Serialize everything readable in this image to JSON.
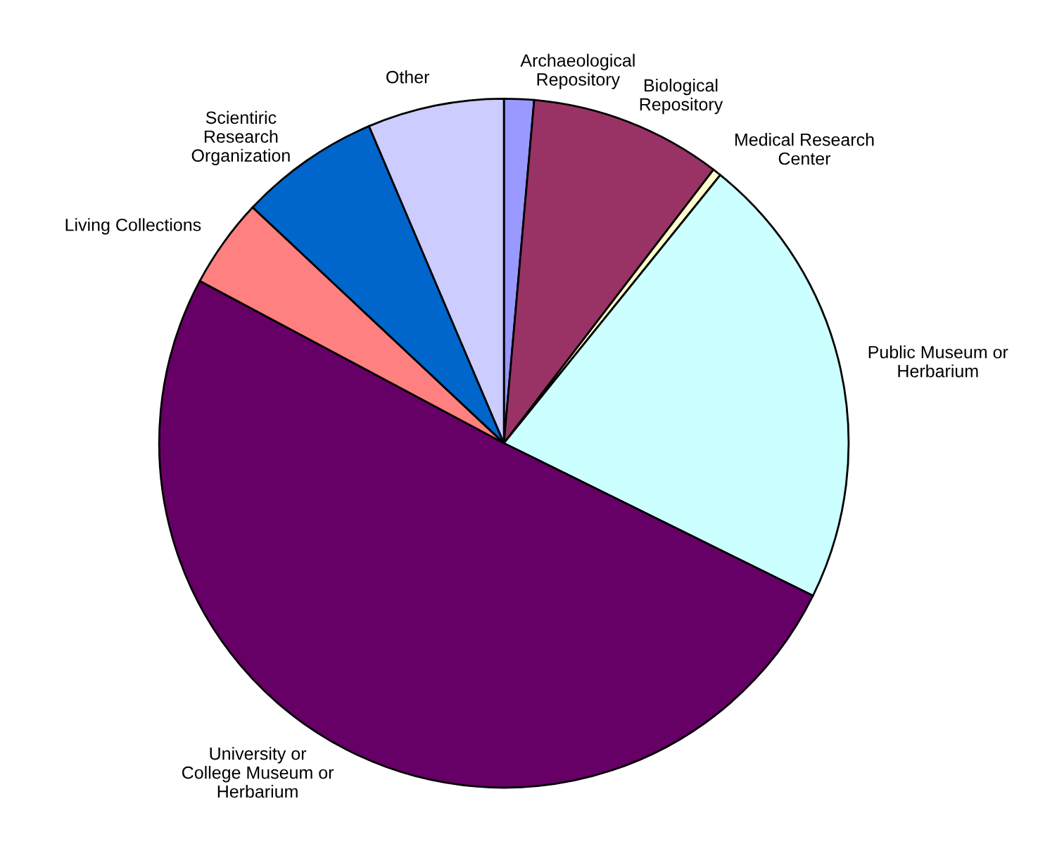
{
  "chart_data": {
    "type": "pie",
    "categories": [
      "Archaeological\nRepository",
      "Biological\nRepository",
      "Medical Research\nCenter",
      "Public Museum or\nHerbarium",
      "University or\nCollege Museum or\nHerbarium",
      "Living Collections",
      "Scientiric\nResearch\nOrganization",
      "Other"
    ],
    "values": [
      1.4,
      9.0,
      0.4,
      21.5,
      50.5,
      4.2,
      6.6,
      6.4
    ],
    "colors": [
      "#9999ff",
      "#993366",
      "#ffffcc",
      "#ccffff",
      "#660066",
      "#ff8080",
      "#0066cc",
      "#ccccff"
    ],
    "legend": false
  }
}
